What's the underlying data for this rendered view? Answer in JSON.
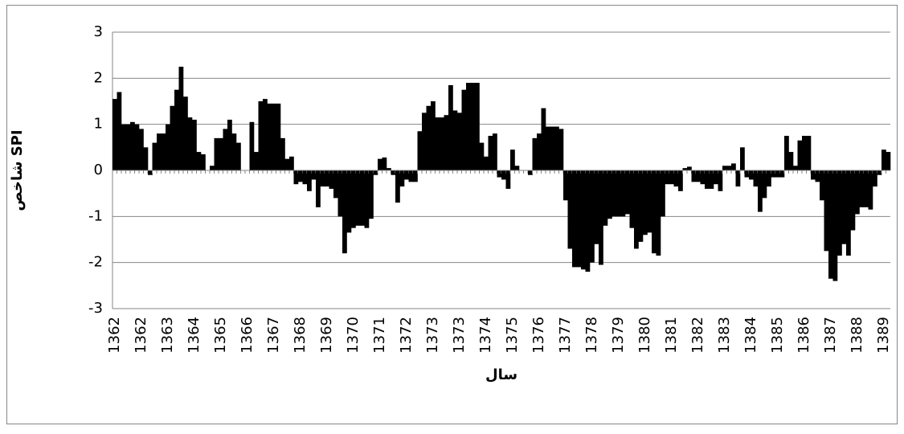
{
  "chart_data": {
    "type": "bar",
    "y_label": "شاخص SPI",
    "x_label": "سال",
    "categories": [
      "1362",
      null,
      null,
      null,
      null,
      null,
      "1362",
      null,
      null,
      null,
      null,
      null,
      "1363",
      null,
      null,
      null,
      null,
      null,
      "1364",
      null,
      null,
      null,
      null,
      null,
      "1365",
      null,
      null,
      null,
      null,
      null,
      "1366",
      null,
      null,
      null,
      null,
      null,
      "1367",
      null,
      null,
      null,
      null,
      null,
      "1368",
      null,
      null,
      null,
      null,
      null,
      "1369",
      null,
      null,
      null,
      null,
      null,
      "1370",
      null,
      null,
      null,
      null,
      null,
      "1371",
      null,
      null,
      null,
      null,
      null,
      "1372",
      null,
      null,
      null,
      null,
      null,
      "1373",
      null,
      null,
      null,
      null,
      null,
      "1373",
      null,
      null,
      null,
      null,
      null,
      "1374",
      null,
      null,
      null,
      null,
      null,
      "1375",
      null,
      null,
      null,
      null,
      null,
      "1376",
      null,
      null,
      null,
      null,
      null,
      "1377",
      null,
      null,
      null,
      null,
      null,
      "1378",
      null,
      null,
      null,
      null,
      null,
      "1379",
      null,
      null,
      null,
      null,
      null,
      "1380",
      null,
      null,
      null,
      null,
      null,
      "1381",
      null,
      null,
      null,
      null,
      null,
      "1382",
      null,
      null,
      null,
      null,
      null,
      "1383",
      null,
      null,
      null,
      null,
      null,
      "1384",
      null,
      null,
      null,
      null,
      null,
      "1385",
      null,
      null,
      null,
      null,
      null,
      "1386",
      null,
      null,
      null,
      null,
      null,
      "1387",
      null,
      null,
      null,
      null,
      null,
      "1388",
      null,
      null,
      null,
      null,
      null,
      "1389",
      null
    ],
    "values": [
      1.55,
      1.7,
      1.0,
      1.0,
      1.05,
      1.0,
      0.9,
      0.5,
      -0.1,
      0.6,
      0.8,
      0.8,
      1.0,
      1.4,
      1.75,
      2.25,
      1.6,
      1.15,
      1.1,
      0.4,
      0.35,
      0.0,
      0.1,
      0.7,
      0.7,
      0.9,
      1.1,
      0.8,
      0.6,
      0.0,
      0.0,
      1.05,
      0.4,
      1.5,
      1.55,
      1.45,
      1.45,
      1.45,
      0.7,
      0.25,
      0.3,
      -0.3,
      -0.25,
      -0.3,
      -0.45,
      -0.2,
      -0.8,
      -0.35,
      -0.35,
      -0.4,
      -0.6,
      -1.0,
      -1.8,
      -1.35,
      -1.25,
      -1.2,
      -1.2,
      -1.25,
      -1.05,
      -0.1,
      0.25,
      0.28,
      0.05,
      -0.1,
      -0.7,
      -0.35,
      -0.2,
      -0.25,
      -0.25,
      0.85,
      1.25,
      1.4,
      1.5,
      1.15,
      1.15,
      1.2,
      1.85,
      1.3,
      1.25,
      1.75,
      1.9,
      1.9,
      1.9,
      0.6,
      0.3,
      0.75,
      0.8,
      -0.15,
      -0.2,
      -0.4,
      0.45,
      0.1,
      0.0,
      0.0,
      -0.1,
      0.7,
      0.8,
      1.35,
      0.95,
      0.95,
      0.95,
      0.9,
      -0.65,
      -1.7,
      -2.1,
      -2.1,
      -2.15,
      -2.2,
      -2.0,
      -1.6,
      -2.05,
      -1.2,
      -1.05,
      -1.0,
      -1.0,
      -1.0,
      -0.95,
      -1.25,
      -1.7,
      -1.55,
      -1.4,
      -1.35,
      -1.8,
      -1.85,
      -1.0,
      -0.3,
      -0.3,
      -0.35,
      -0.45,
      0.05,
      0.08,
      -0.25,
      -0.25,
      -0.3,
      -0.4,
      -0.4,
      -0.3,
      -0.45,
      0.1,
      0.1,
      0.15,
      -0.35,
      0.5,
      -0.15,
      -0.2,
      -0.35,
      -0.9,
      -0.6,
      -0.35,
      -0.15,
      -0.15,
      -0.15,
      0.75,
      0.4,
      0.1,
      0.65,
      0.75,
      0.75,
      -0.2,
      -0.25,
      -0.65,
      -1.75,
      -2.35,
      -2.4,
      -1.85,
      -1.6,
      -1.85,
      -1.3,
      -0.95,
      -0.8,
      -0.8,
      -0.85,
      -0.35,
      -0.1,
      0.45,
      0.4
    ],
    "color": "#000000",
    "ylim": [
      -3,
      3
    ],
    "yticks": [
      -3,
      -2,
      -1,
      0,
      1,
      2,
      3
    ],
    "grid": true
  }
}
